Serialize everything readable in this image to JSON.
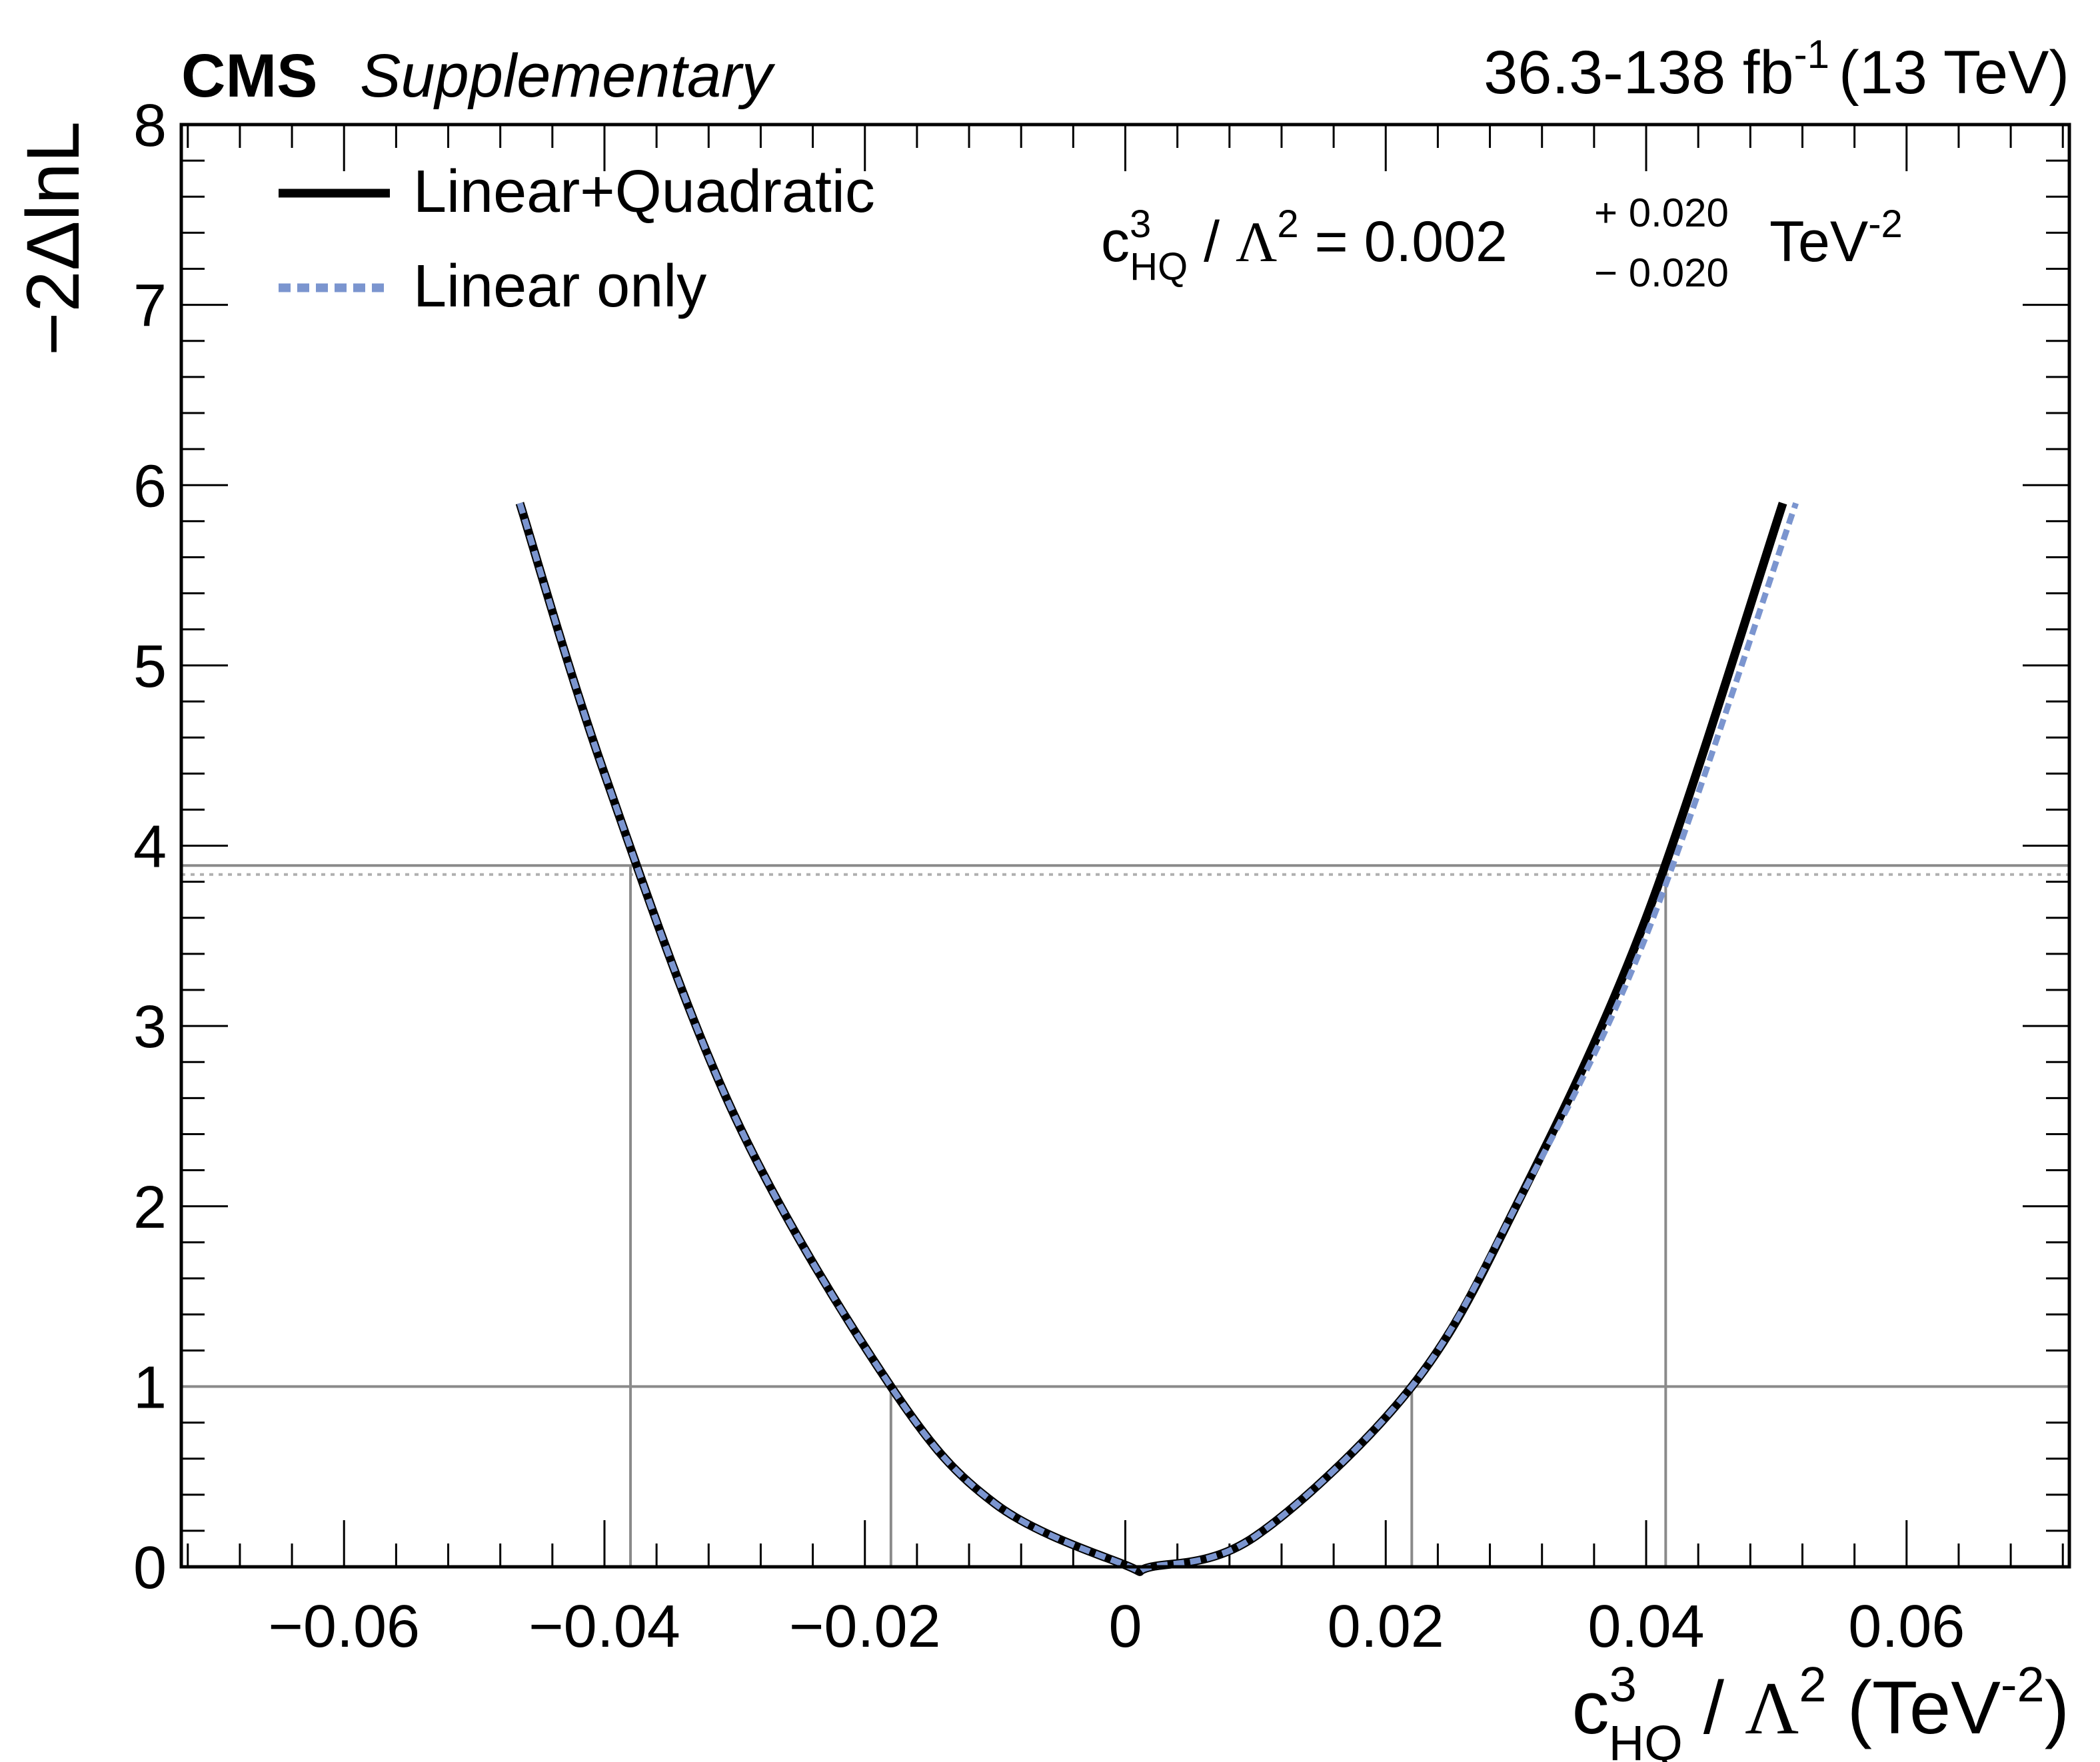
{
  "header": {
    "experiment": "CMS",
    "label": "Supplementary",
    "lumi_value": "36.3-138 fb",
    "lumi_exp": "-1",
    "energy": "(13 TeV)"
  },
  "legend": {
    "items": [
      {
        "label": "Linear+Quadratic",
        "style": "solid",
        "color": "#000000"
      },
      {
        "label": "Linear only",
        "style": "dashed",
        "color": "#7b95cf"
      }
    ],
    "placement": "top-left"
  },
  "result": {
    "param_base": "c",
    "param_sup": "3",
    "param_sub": "HQ",
    "slash": " / ",
    "lambda": "Λ",
    "lambda_sup": "2",
    "equals_value": " = 0.002",
    "err_up": "+ 0.020",
    "err_down": "− 0.020",
    "unit": "TeV",
    "unit_sup": "-2"
  },
  "axes": {
    "ylabel": "−2ΔlnL",
    "xlabel": {
      "base": "c",
      "sup": "3",
      "sub": "HQ",
      "slash": " / ",
      "lambda": "Λ",
      "lambda_sup": "2",
      "unit_open": " (TeV",
      "unit_sup": "-2",
      "unit_close": ")"
    },
    "x_ticks": [
      "−0.06",
      "−0.04",
      "−0.02",
      "0",
      "0.02",
      "0.04",
      "0.06"
    ],
    "y_ticks": [
      "0",
      "1",
      "2",
      "3",
      "4",
      "5",
      "6",
      "7",
      "8"
    ]
  },
  "colors": {
    "primary_line": "#000000",
    "linear_only_line": "#7b95cf",
    "reference_lines": "#8a8a8a",
    "reference_dotted": "#b0b0b0"
  },
  "chart_data": {
    "type": "line",
    "xlim": [
      -0.0725,
      0.0725
    ],
    "ylim": [
      0,
      8
    ],
    "x_tick_values": [
      -0.06,
      -0.04,
      -0.02,
      0,
      0.02,
      0.04,
      0.06
    ],
    "y_tick_values": [
      0,
      1,
      2,
      3,
      4,
      5,
      6,
      7,
      8
    ],
    "grid": false,
    "series": [
      {
        "name": "Linear+Quadratic",
        "x": [
          -0.0465,
          -0.04,
          -0.03,
          -0.018,
          -0.01,
          0.0,
          0.002,
          0.01,
          0.022,
          0.03,
          0.04,
          0.0505
        ],
        "y": [
          5.9,
          4.4,
          2.5,
          1.0,
          0.35,
          0.01,
          0.0,
          0.17,
          1.0,
          2.0,
          3.6,
          5.9
        ]
      },
      {
        "name": "Linear only",
        "x": [
          -0.0465,
          -0.04,
          -0.03,
          -0.018,
          -0.01,
          0.0,
          0.002,
          0.01,
          0.022,
          0.03,
          0.04,
          0.0515
        ],
        "y": [
          5.9,
          4.4,
          2.5,
          1.0,
          0.35,
          0.01,
          0.0,
          0.17,
          1.0,
          2.0,
          3.5,
          5.9
        ]
      }
    ],
    "reference_levels": [
      {
        "y": 1.0,
        "style": "solid"
      },
      {
        "y": 3.89,
        "style": "solid"
      },
      {
        "y": 3.84,
        "style": "dotted"
      }
    ],
    "interval_markers": [
      {
        "x": -0.038,
        "y": 3.89
      },
      {
        "x": -0.018,
        "y": 1.0
      },
      {
        "x": 0.022,
        "y": 1.0
      },
      {
        "x": 0.0415,
        "y": 3.89
      }
    ]
  }
}
